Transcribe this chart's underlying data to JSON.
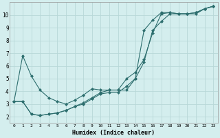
{
  "xlabel": "Humidex (Indice chaleur)",
  "bg_color": "#d4eeee",
  "grid_color": "#b8d8d8",
  "line_color": "#2d6e6e",
  "xlim": [
    -0.5,
    23.5
  ],
  "ylim": [
    1.5,
    11.0
  ],
  "xticks": [
    0,
    1,
    2,
    3,
    4,
    5,
    6,
    7,
    8,
    9,
    10,
    11,
    12,
    13,
    14,
    15,
    16,
    17,
    18,
    19,
    20,
    21,
    22,
    23
  ],
  "yticks": [
    2,
    3,
    4,
    5,
    6,
    7,
    8,
    9,
    10
  ],
  "series1_x": [
    0,
    1,
    2,
    3,
    4,
    5,
    6,
    7,
    8,
    9,
    10,
    11,
    12,
    13,
    14,
    15,
    16,
    17,
    18,
    19,
    20,
    21,
    22,
    23
  ],
  "series1_y": [
    3.2,
    6.8,
    5.2,
    4.1,
    3.5,
    3.2,
    3.0,
    3.3,
    3.7,
    4.2,
    4.1,
    4.1,
    4.1,
    5.0,
    5.5,
    6.5,
    8.6,
    10.1,
    10.2,
    10.1,
    10.1,
    10.2,
    10.5,
    10.7
  ],
  "series2_x": [
    0,
    1,
    2,
    3,
    4,
    5,
    6,
    7,
    8,
    9,
    10,
    11,
    12,
    13,
    14,
    15,
    16,
    17,
    18,
    19,
    20,
    21,
    22,
    23
  ],
  "series2_y": [
    3.2,
    3.2,
    2.2,
    2.1,
    2.2,
    2.3,
    2.5,
    2.8,
    3.1,
    3.5,
    3.9,
    4.1,
    4.1,
    4.1,
    5.0,
    8.8,
    9.6,
    10.2,
    10.2,
    10.1,
    10.1,
    10.2,
    10.5,
    10.7
  ],
  "series3_x": [
    0,
    1,
    2,
    3,
    4,
    5,
    6,
    7,
    8,
    9,
    10,
    11,
    12,
    13,
    14,
    15,
    16,
    17,
    18,
    19,
    20,
    21,
    22,
    23
  ],
  "series3_y": [
    3.2,
    3.2,
    2.2,
    2.1,
    2.2,
    2.3,
    2.5,
    2.8,
    3.0,
    3.4,
    3.8,
    3.9,
    3.9,
    4.4,
    5.0,
    6.3,
    8.8,
    9.5,
    10.1,
    10.1,
    10.1,
    10.1,
    10.5,
    10.7
  ]
}
